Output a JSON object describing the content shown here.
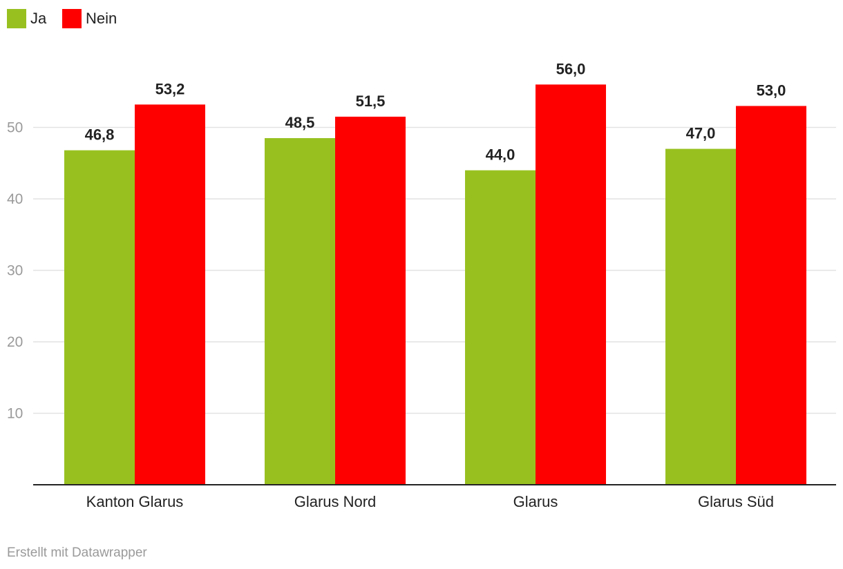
{
  "chart_data": {
    "type": "bar",
    "categories": [
      "Kanton Glarus",
      "Glarus Nord",
      "Glarus",
      "Glarus Süd"
    ],
    "series": [
      {
        "name": "Ja",
        "color": "#98c120",
        "values": [
          46.8,
          48.5,
          44.0,
          47.0
        ],
        "labels": [
          "46,8",
          "48,5",
          "44,0",
          "47,0"
        ]
      },
      {
        "name": "Nein",
        "color": "#ff0000",
        "values": [
          53.2,
          51.5,
          56.0,
          53.0
        ],
        "labels": [
          "53,2",
          "51,5",
          "56,0",
          "53,0"
        ]
      }
    ],
    "yticks": [
      10,
      20,
      30,
      40,
      50
    ],
    "ytick_labels": [
      "10",
      "20",
      "30",
      "40",
      "50"
    ],
    "ylim": [
      0,
      60
    ],
    "grid": true,
    "legend_position": "top-left"
  },
  "footer": {
    "credit": "Erstellt mit Datawrapper"
  }
}
